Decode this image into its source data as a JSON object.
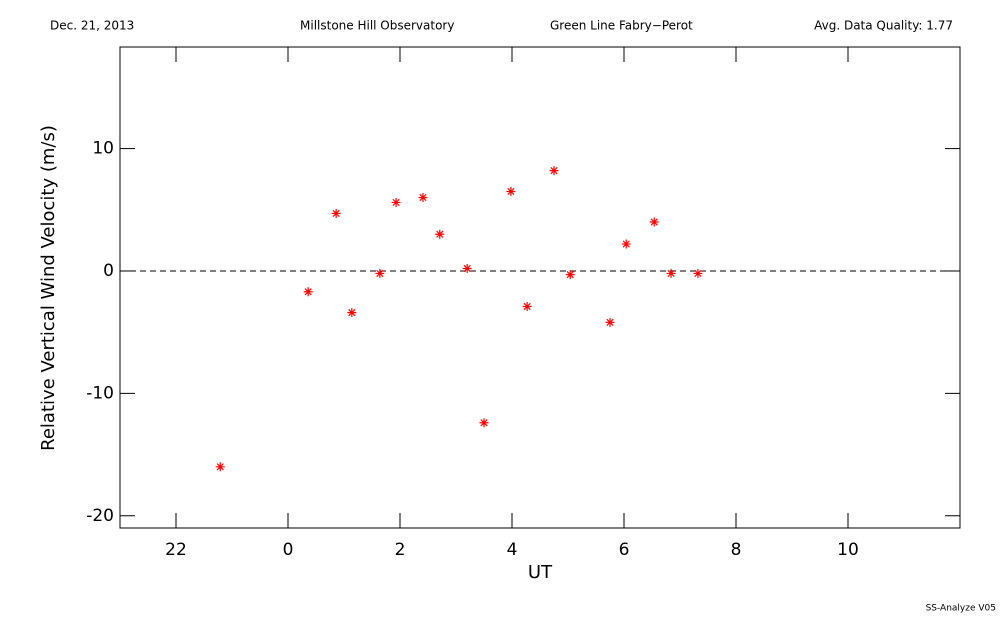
{
  "chart_data": {
    "type": "scatter",
    "header": [
      "Dec. 21, 2013",
      "Millstone Hill Observatory",
      "Green Line Fabry−Perot",
      "Avg. Data Quality: 1.77"
    ],
    "footer": "SS-Analyze V05",
    "x_label": "UT",
    "y_label": "Relative Vertical Wind Velocity (m/s)",
    "xlim": [
      -3,
      12
    ],
    "ylim": [
      -21,
      18.3
    ],
    "xticks": [
      {
        "value": -2,
        "label": "22"
      },
      0,
      2,
      4,
      6,
      8,
      10
    ],
    "yticks": [
      -20,
      -10,
      0,
      10
    ],
    "reference_line": 0,
    "series": [
      {
        "color": "#ff0000",
        "x": [
          -1.21,
          0.36,
          0.86,
          1.14,
          1.64,
          1.93,
          2.41,
          2.71,
          3.2,
          3.5,
          3.98,
          4.27,
          4.75,
          5.04,
          5.75,
          6.04,
          6.54,
          6.84,
          7.32
        ],
        "values": [
          -16.0,
          -1.7,
          4.7,
          -3.4,
          -0.2,
          5.6,
          6.0,
          3.0,
          0.2,
          -12.4,
          6.5,
          -2.9,
          8.2,
          -0.3,
          -4.2,
          2.2,
          4.0,
          -0.2,
          -0.2
        ]
      }
    ]
  }
}
